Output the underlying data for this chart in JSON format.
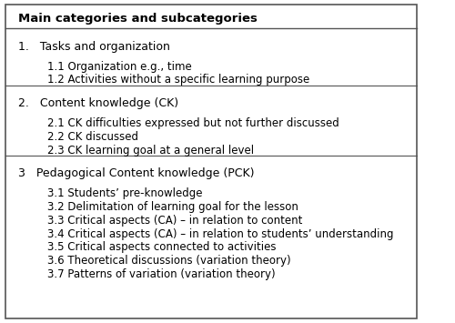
{
  "header": "Main categories and subcategories",
  "sections": [
    {
      "main": "1.   Tasks and organization",
      "subs": [
        "1.1 Organization e.g., time",
        "1.2 Activities without a specific learning purpose"
      ]
    },
    {
      "main": "2.   Content knowledge (CK)",
      "subs": [
        "2.1 CK difficulties expressed but not further discussed",
        "2.2 CK discussed",
        "2.3 CK learning goal at a general level"
      ]
    },
    {
      "main": "3   Pedagogical Content knowledge (PCK)",
      "subs": [
        "3.1 Students’ pre-knowledge",
        "3.2 Delimitation of learning goal for the lesson",
        "3.3 Critical aspects (CA) – in relation to content",
        "3.4 Critical aspects (CA) – in relation to students’ understanding",
        "3.5 Critical aspects connected to activities",
        "3.6 Theoretical discussions (variation theory)",
        "3.7 Patterns of variation (variation theory)"
      ]
    }
  ],
  "bg_color": "#ffffff",
  "border_color": "#555555",
  "text_color": "#000000",
  "header_fontsize": 9.5,
  "main_fontsize": 9.0,
  "sub_fontsize": 8.5,
  "indent_sub": 0.07
}
